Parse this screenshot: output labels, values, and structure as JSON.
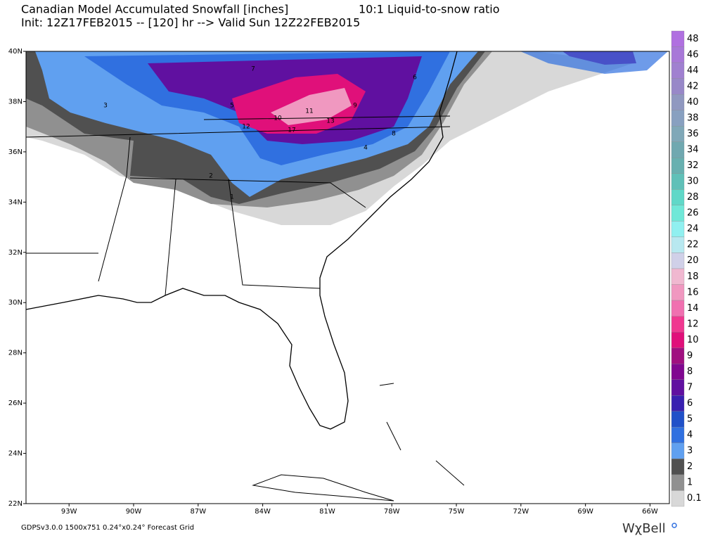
{
  "header": {
    "title": "Canadian Model Accumulated Snowfall [inches]",
    "ratio": "10:1 Liquid-to-snow ratio",
    "init": "Init: 12Z17FEB2015 -- [120] hr --> Valid Sun 12Z22FEB2015"
  },
  "map": {
    "xlim": [
      -95,
      -65.1
    ],
    "ylim": [
      22,
      40
    ],
    "xticks": [
      {
        "value": -93,
        "label": "93W"
      },
      {
        "value": -90,
        "label": "90W"
      },
      {
        "value": -87,
        "label": "87W"
      },
      {
        "value": -84,
        "label": "84W"
      },
      {
        "value": -81,
        "label": "81W"
      },
      {
        "value": -78,
        "label": "78W"
      },
      {
        "value": -75,
        "label": "75W"
      },
      {
        "value": -72,
        "label": "72W"
      },
      {
        "value": -69,
        "label": "69W"
      },
      {
        "value": -66,
        "label": "66W"
      }
    ],
    "yticks": [
      {
        "value": 22,
        "label": "22N"
      },
      {
        "value": 24,
        "label": "24N"
      },
      {
        "value": 26,
        "label": "26N"
      },
      {
        "value": 28,
        "label": "28N"
      },
      {
        "value": 30,
        "label": "30N"
      },
      {
        "value": 32,
        "label": "32N"
      },
      {
        "value": 34,
        "label": "34N"
      },
      {
        "value": 36,
        "label": "36N"
      },
      {
        "value": 38,
        "label": "38N"
      },
      {
        "value": 40,
        "label": "40N"
      }
    ],
    "contour_labels": [
      "13",
      "12",
      "17",
      "11",
      "10",
      "9",
      "8",
      "7",
      "6",
      "5",
      "4",
      "3",
      "2",
      "1"
    ]
  },
  "colorbar": {
    "levels": [
      48,
      46,
      44,
      42,
      40,
      38,
      36,
      34,
      32,
      30,
      28,
      26,
      24,
      22,
      20,
      18,
      16,
      14,
      12,
      10,
      9,
      8,
      7,
      6,
      5,
      4,
      3,
      2,
      1,
      0.1
    ],
    "colors": [
      "#b070e0",
      "#a878d8",
      "#a080d0",
      "#9888c8",
      "#9098c0",
      "#88a0c0",
      "#80a8b8",
      "#70a8b0",
      "#68b0b0",
      "#60c0b8",
      "#60d8c8",
      "#70e8d8",
      "#90f0f0",
      "#b8e8f0",
      "#d0d0e8",
      "#f0b8d0",
      "#f098c0",
      "#f070b0",
      "#f03890",
      "#e0107a",
      "#a01080",
      "#800890",
      "#6010a0",
      "#3820b0",
      "#2050c8",
      "#3070e0",
      "#60a0f0",
      "#505050",
      "#909090",
      "#d8d8d8"
    ]
  },
  "footer": {
    "grid": "GDPSv3.0.0 1500x751 0.24°x0.24° Forecast Grid",
    "logo": "WχBell"
  }
}
